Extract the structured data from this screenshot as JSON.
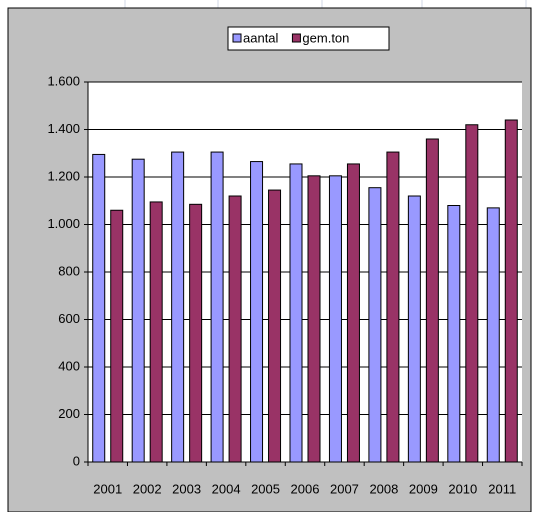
{
  "chart_data": {
    "type": "bar",
    "categories": [
      "2001",
      "2002",
      "2003",
      "2004",
      "2005",
      "2006",
      "2007",
      "2008",
      "2009",
      "2010",
      "2011"
    ],
    "series": [
      {
        "name": "aantal",
        "color": "#9999ff",
        "values": [
          1295,
          1275,
          1305,
          1305,
          1265,
          1255,
          1205,
          1155,
          1120,
          1080,
          1070
        ]
      },
      {
        "name": "gem.ton",
        "color": "#993366",
        "values": [
          1060,
          1095,
          1085,
          1120,
          1145,
          1205,
          1255,
          1305,
          1360,
          1420,
          1440
        ]
      }
    ],
    "ylim": [
      0,
      1600
    ],
    "yticks": [
      0,
      200,
      400,
      600,
      800,
      {
        "value": 1000,
        "label": "1.000"
      },
      {
        "value": 1200,
        "label": "1.200"
      },
      {
        "value": 1400,
        "label": "1.400"
      },
      {
        "value": 1600,
        "label": "1.600"
      }
    ],
    "grid": true,
    "legend": "top"
  }
}
